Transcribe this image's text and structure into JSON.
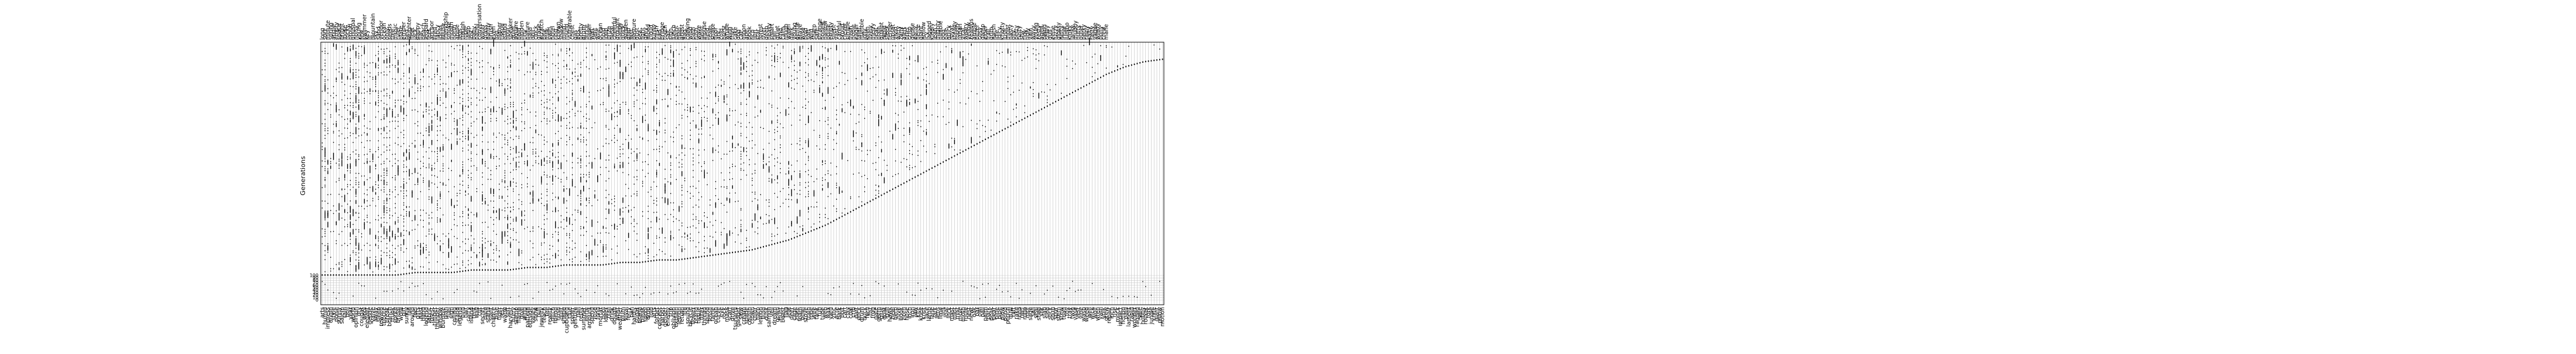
{
  "chart_data": {
    "type": "scatter",
    "title": "",
    "xlabel": "",
    "ylabel": "Generations",
    "ytick_labels": [
      "0",
      "10",
      "20",
      "30",
      "40",
      "50",
      "60",
      "70",
      "80",
      "90",
      "100"
    ],
    "ylim": [
      0,
      1
    ],
    "xlim": [
      0,
      288
    ],
    "colors": {
      "series_a": "#000000",
      "gridline": "#b0b0b0",
      "axes": "#000000"
    },
    "top_words": [
      "long",
      "sort",
      "minute",
      "spring",
      "angle",
      "empty",
      "space",
      "bright",
      "loose",
      "rocky",
      "proud",
      "unusual",
      "noisy",
      "young",
      "few",
      "swimmer",
      "key",
      "ill",
      "mountain",
      "sky",
      "sand",
      "vendor",
      "ocean",
      "only",
      "seeds",
      "tree",
      "music",
      "ruler",
      "plate",
      "ember",
      "bed",
      "laughter",
      "fleet",
      "jack",
      "happy",
      "flat",
      "beach",
      "leopard",
      "feet",
      "anchor",
      "tired",
      "fancy",
      "ideas",
      "house",
      "friendship",
      "smoke",
      "month",
      "north",
      "apple",
      "legs",
      "trough",
      "rope",
      "lamp",
      "lost",
      "baby",
      "patrol",
      "conversation",
      "water",
      "grass",
      "nanny",
      "brush",
      "even",
      "fog",
      "higher",
      "tissue",
      "island",
      "hour",
      "speaker",
      "quiet",
      "square",
      "hold",
      "hidden",
      "tiny",
      "nature",
      "hard",
      "doll",
      "clock",
      "grape",
      "scratch",
      "bite",
      "milk",
      "swirl",
      "hotel",
      "ring",
      "known",
      "shadow",
      "mind",
      "round",
      "vulnerable",
      "chest",
      "gas",
      "bus",
      "pretty",
      "drum",
      "fence",
      "paper",
      "wall",
      "sent",
      "wife",
      "ocean",
      "hold",
      "loop",
      "prize",
      "meal",
      "cheerful",
      "drought",
      "happy",
      "quick",
      "sudden",
      "glad",
      "fast",
      "pasture",
      "dust",
      "sea",
      "light",
      "grey",
      "mood",
      "cloud",
      "funny",
      "fresh",
      "sad",
      "bridge",
      "tooth",
      "salt",
      "sign",
      "lunch",
      "paint",
      "map",
      "ghost",
      "flag",
      "cooking",
      "wind",
      "path",
      "rush",
      "wave",
      "hello",
      "mouse",
      "field",
      "team",
      "snake",
      "floor",
      "ant",
      "cold",
      "burst",
      "whale",
      "wing",
      "thin",
      "cake",
      "dog",
      "cat",
      "moon",
      "ape",
      "book",
      "rich",
      "lion",
      "star",
      "forest",
      "river",
      "deep",
      "heavy",
      "smart",
      "tall",
      "quiet",
      "kind",
      "calm",
      "rough",
      "warm",
      "dark",
      "young",
      "gentle",
      "brave",
      "wise",
      "bold",
      "soft",
      "wild",
      "sharp",
      "safe",
      "strange",
      "honest",
      "narrow",
      "polite",
      "empty",
      "silent",
      "vast",
      "careful",
      "proud",
      "clever",
      "simple",
      "fresh",
      "noble",
      "eager",
      "faint",
      "humble",
      "jolly",
      "keen",
      "lively",
      "merry",
      "neat",
      "plain",
      "quaint",
      "rapid",
      "sleek",
      "tender",
      "upset",
      "vivid",
      "witty",
      "zany",
      "alert",
      "brief",
      "crisp",
      "dense",
      "early",
      "fierce",
      "giant",
      "hollow",
      "icy",
      "jagged",
      "kindly",
      "lean",
      "mighty",
      "nimble",
      "odd",
      "pale",
      "quick",
      "royal",
      "steady",
      "tough",
      "urban",
      "vital",
      "weary",
      "yellow",
      "zealous",
      "ample",
      "bitter",
      "cosy",
      "damp",
      "elder",
      "frail",
      "grim",
      "harsh",
      "idle",
      "juicy",
      "knotty",
      "lush",
      "moist",
      "nasty",
      "oily",
      "petty",
      "rusty",
      "shy",
      "tidy",
      "ugly",
      "vain",
      "wavy",
      "young",
      "zesty",
      "aged",
      "bland",
      "chilly",
      "dull",
      "eerie",
      "fuzzy",
      "glossy",
      "hefty",
      "inner",
      "jumbo",
      "kinky",
      "lanky",
      "muddy",
      "nutty",
      "outer",
      "perky",
      "rainy",
      "salty",
      "tasty",
      "vague",
      "windy",
      "pony",
      "crew",
      "mane"
    ],
    "bottom_words": [
      "arts",
      "humid",
      "impress",
      "origin",
      "style",
      "poise",
      "sunny",
      "salem",
      "rain",
      "boil",
      "year",
      "world",
      "opinion",
      "dry",
      "cougar",
      "wool",
      "elegant",
      "geode",
      "valve",
      "away",
      "sleep",
      "reward",
      "tribute",
      "break",
      "branch",
      "trunk",
      "sprite",
      "bridal",
      "word",
      "gift",
      "sunny",
      "fall",
      "around",
      "feel",
      "gifts",
      "past",
      "hand",
      "legend",
      "fabric",
      "forest",
      "timber",
      "thunder",
      "window",
      "bumble",
      "plan",
      "fuel",
      "sign",
      "ceiling",
      "stand",
      "legend",
      "bird",
      "hair",
      "carry",
      "island",
      "tent",
      "wall",
      "cut",
      "secret",
      "date",
      "stand",
      "slant",
      "chance",
      "blue",
      "tiger",
      "rest",
      "warm",
      "soft",
      "harvest",
      "hurry",
      "stamp",
      "flame",
      "goal",
      "wing",
      "pattern",
      "outside",
      "valley",
      "snow",
      "hull",
      "jewelry",
      "teach",
      "tire",
      "reality",
      "ditch",
      "friend",
      "hush",
      "quilt",
      "shape",
      "cupboard",
      "clue",
      "spider",
      "gesture",
      "nail",
      "reply",
      "summer",
      "eerie",
      "amount",
      "spend",
      "rose",
      "fond",
      "mortar",
      "pool",
      "lower",
      "trail",
      "drink",
      "dough",
      "wrist",
      "weather",
      "plum",
      "loyal",
      "ferry",
      "pan",
      "hardly",
      "sugar",
      "brand",
      "bleak",
      "spool",
      "drop",
      "fold",
      "arts",
      "forget",
      "concept",
      "harbor",
      "gender",
      "enemy",
      "trip",
      "oblivion",
      "explain",
      "lemon",
      "return",
      "life",
      "sound",
      "bicycle",
      "flower",
      "brand",
      "tissue",
      "filter",
      "thread",
      "sound",
      "fossil",
      "fame",
      "ocean",
      "curve",
      "eye",
      "rock",
      "mask",
      "scarf",
      "drive",
      "tsunami",
      "gadget",
      "slow",
      "cream",
      "spade",
      "cousin",
      "crown",
      "color",
      "harp",
      "lemon",
      "fluid",
      "dusk",
      "salmon",
      "veil",
      "dream",
      "gown",
      "hunt",
      "beast",
      "flag",
      "leaf",
      "deer",
      "cage",
      "hare",
      "foam",
      "bowl",
      "stove",
      "train",
      "rope",
      "wire",
      "tank",
      "tub",
      "tube",
      "web",
      "wax",
      "yard",
      "zinc",
      "acre",
      "bark",
      "bolt",
      "cart",
      "clay",
      "coal",
      "crib",
      "dart",
      "dock",
      "drum",
      "duck",
      "fern",
      "fist",
      "frog",
      "gate",
      "germ",
      "glue",
      "goat",
      "gull",
      "hawk",
      "heel",
      "herb",
      "hive",
      "hook",
      "horn",
      "hose",
      "inch",
      "iron",
      "jaw",
      "kite",
      "knee",
      "knot",
      "lace",
      "lamb",
      "lane",
      "lark",
      "lens",
      "lime",
      "lint",
      "loaf",
      "lock",
      "mast",
      "mint",
      "mist",
      "mole",
      "moth",
      "mule",
      "nest",
      "newt",
      "oak",
      "oar",
      "owl",
      "pail",
      "palm",
      "park",
      "peak",
      "pear",
      "pine",
      "pipe",
      "plow",
      "pond",
      "pouch",
      "quill",
      "raft",
      "rake",
      "reed",
      "reef",
      "robe",
      "roof",
      "sage",
      "sail",
      "seal",
      "shed",
      "silk",
      "slab",
      "sled",
      "sock",
      "soup",
      "spur",
      "stem",
      "stew",
      "toad",
      "toy",
      "tray",
      "twig",
      "vase",
      "vest",
      "vine",
      "wasp",
      "weed",
      "well",
      "wick",
      "wolf",
      "wren",
      "yarn",
      "yolk",
      "grew",
      "repair",
      "inch",
      "rise",
      "mock",
      "impact",
      "fiction",
      "paid",
      "lament",
      "rapid",
      "wonder",
      "ragged",
      "sale",
      "hobby",
      "rocket",
      "fork",
      "jungle",
      "knife",
      "giant",
      "pillow",
      "motion"
    ],
    "cutoff_profile": [
      0.1,
      0.1,
      0.1,
      0.1,
      0.1,
      0.11,
      0.11,
      0.11,
      0.12,
      0.12,
      0.12,
      0.13,
      0.13,
      0.14,
      0.14,
      0.14,
      0.15,
      0.15,
      0.16,
      0.16,
      0.17,
      0.18,
      0.19,
      0.2,
      0.22,
      0.24,
      0.27,
      0.3,
      0.34,
      0.38,
      0.42,
      0.46,
      0.5,
      0.54,
      0.58,
      0.62,
      0.66,
      0.7,
      0.74,
      0.78,
      0.82,
      0.86,
      0.9,
      0.93,
      0.95,
      0.96
    ]
  }
}
